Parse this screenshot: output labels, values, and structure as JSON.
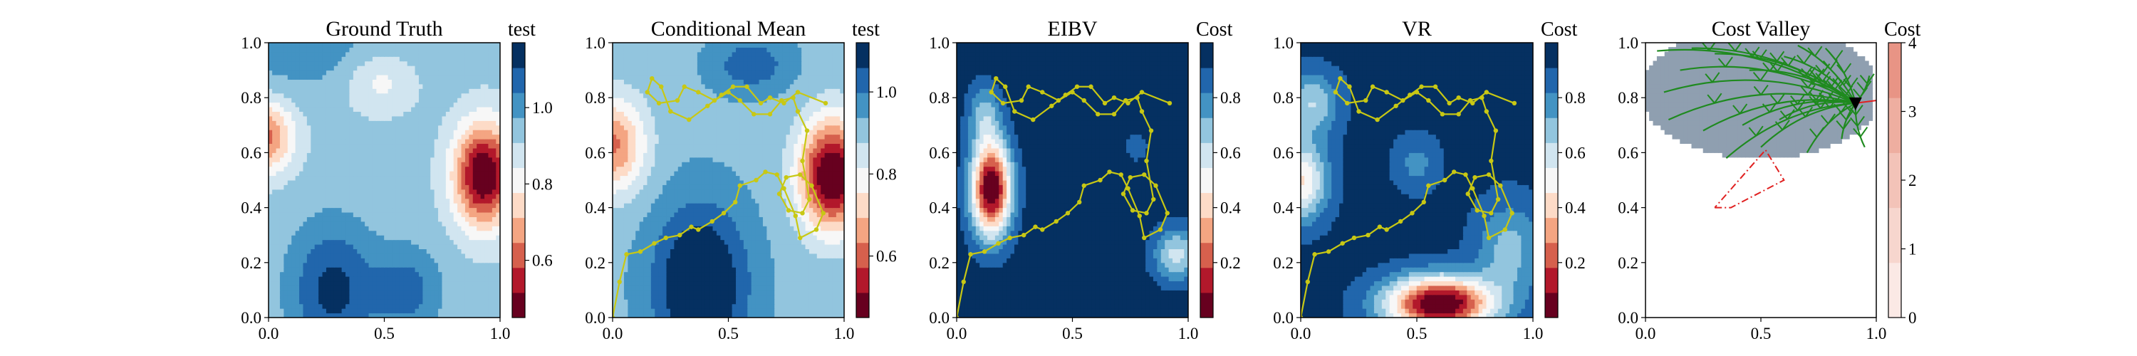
{
  "chart_data": [
    {
      "type": "heatmap",
      "title": "Ground Truth",
      "colorbar_label": "test",
      "colormap": "RdBu",
      "xlim": [
        0,
        1
      ],
      "ylim": [
        0,
        1
      ],
      "xticks": [
        "0.0",
        "0.5",
        "1.0"
      ],
      "yticks": [
        "0.0",
        "0.2",
        "0.4",
        "0.6",
        "0.8",
        "1.0"
      ],
      "clim": [
        0.45,
        1.17
      ],
      "colorbar_ticks": [
        "0.6",
        "0.8",
        "1.0"
      ],
      "colorbar_tick_values": [
        0.6,
        0.8,
        1.0
      ],
      "field": "ground_truth"
    },
    {
      "type": "heatmap",
      "title": "Conditional Mean",
      "colorbar_label": "test",
      "colormap": "RdBu",
      "xlim": [
        0,
        1
      ],
      "ylim": [
        0,
        1
      ],
      "xticks": [
        "0.0",
        "0.5",
        "1.0"
      ],
      "yticks": [
        "0.0",
        "0.2",
        "0.4",
        "0.6",
        "0.8",
        "1.0"
      ],
      "clim": [
        0.45,
        1.12
      ],
      "colorbar_ticks": [
        "0.6",
        "0.8",
        "1.0"
      ],
      "colorbar_tick_values": [
        0.6,
        0.8,
        1.0
      ],
      "field": "conditional_mean",
      "trajectory": "path"
    },
    {
      "type": "heatmap",
      "title": "EIBV",
      "colorbar_label": "Cost",
      "colormap": "RdBu",
      "xlim": [
        0,
        1
      ],
      "ylim": [
        0,
        1
      ],
      "xticks": [
        "0.0",
        "0.5",
        "1.0"
      ],
      "yticks": [
        "0.0",
        "0.2",
        "0.4",
        "0.6",
        "0.8",
        "1.0"
      ],
      "clim": [
        0.0,
        1.0
      ],
      "colorbar_ticks": [
        "0.2",
        "0.4",
        "0.6",
        "0.8"
      ],
      "colorbar_tick_values": [
        0.2,
        0.4,
        0.6,
        0.8
      ],
      "field": "eibv",
      "trajectory": "path"
    },
    {
      "type": "heatmap",
      "title": "VR",
      "colorbar_label": "Cost",
      "colormap": "RdBu",
      "xlim": [
        0,
        1
      ],
      "ylim": [
        0,
        1
      ],
      "xticks": [
        "0.0",
        "0.5",
        "1.0"
      ],
      "yticks": [
        "0.0",
        "0.2",
        "0.4",
        "0.6",
        "0.8",
        "1.0"
      ],
      "clim": [
        0.0,
        1.0
      ],
      "colorbar_ticks": [
        "0.2",
        "0.4",
        "0.6",
        "0.8"
      ],
      "colorbar_tick_values": [
        0.2,
        0.4,
        0.6,
        0.8
      ],
      "field": "vr",
      "trajectory": "path"
    },
    {
      "type": "scatter",
      "title": "Cost Valley",
      "colorbar_label": "Cost",
      "colormap": "Reds",
      "xlim": [
        0,
        1
      ],
      "ylim": [
        0,
        1
      ],
      "xticks": [
        "0.0",
        "0.5",
        "1.0"
      ],
      "yticks": [
        "0.0",
        "0.2",
        "0.4",
        "0.6",
        "0.8",
        "1.0"
      ],
      "clim": [
        0,
        4
      ],
      "colorbar_ticks": [
        "0",
        "1",
        "2",
        "3",
        "4"
      ],
      "colorbar_tick_values": [
        0,
        1,
        2,
        3,
        4
      ],
      "field": "cost_valley",
      "tree_color": "#1f8a1f",
      "current_location": [
        0.91,
        0.78
      ],
      "polygon_color": "#e02020",
      "polygon": [
        [
          0.3,
          0.4
        ],
        [
          0.37,
          0.4
        ],
        [
          0.6,
          0.5
        ],
        [
          0.52,
          0.61
        ],
        [
          0.3,
          0.4
        ]
      ]
    }
  ],
  "path": [
    [
      0.0,
      0.0
    ],
    [
      0.03,
      0.13
    ],
    [
      0.06,
      0.23
    ],
    [
      0.12,
      0.24
    ],
    [
      0.18,
      0.27
    ],
    [
      0.23,
      0.29
    ],
    [
      0.29,
      0.3
    ],
    [
      0.34,
      0.33
    ],
    [
      0.37,
      0.32
    ],
    [
      0.43,
      0.35
    ],
    [
      0.48,
      0.38
    ],
    [
      0.53,
      0.42
    ],
    [
      0.55,
      0.48
    ],
    [
      0.62,
      0.5
    ],
    [
      0.66,
      0.53
    ],
    [
      0.71,
      0.52
    ],
    [
      0.74,
      0.47
    ],
    [
      0.79,
      0.37
    ],
    [
      0.81,
      0.29
    ],
    [
      0.88,
      0.32
    ],
    [
      0.91,
      0.38
    ],
    [
      0.86,
      0.48
    ],
    [
      0.81,
      0.52
    ],
    [
      0.75,
      0.51
    ],
    [
      0.72,
      0.45
    ],
    [
      0.76,
      0.39
    ],
    [
      0.82,
      0.38
    ],
    [
      0.85,
      0.43
    ],
    [
      0.82,
      0.57
    ],
    [
      0.84,
      0.68
    ],
    [
      0.8,
      0.75
    ],
    [
      0.78,
      0.8
    ],
    [
      0.73,
      0.79
    ],
    [
      0.68,
      0.74
    ],
    [
      0.61,
      0.74
    ],
    [
      0.55,
      0.79
    ],
    [
      0.5,
      0.82
    ],
    [
      0.44,
      0.79
    ],
    [
      0.37,
      0.82
    ],
    [
      0.31,
      0.84
    ],
    [
      0.28,
      0.79
    ],
    [
      0.2,
      0.78
    ],
    [
      0.15,
      0.82
    ],
    [
      0.17,
      0.87
    ],
    [
      0.21,
      0.84
    ],
    [
      0.25,
      0.75
    ],
    [
      0.33,
      0.72
    ],
    [
      0.41,
      0.77
    ],
    [
      0.47,
      0.81
    ],
    [
      0.52,
      0.84
    ],
    [
      0.58,
      0.84
    ],
    [
      0.64,
      0.78
    ],
    [
      0.68,
      0.8
    ],
    [
      0.74,
      0.78
    ],
    [
      0.8,
      0.82
    ],
    [
      0.92,
      0.78
    ]
  ]
}
